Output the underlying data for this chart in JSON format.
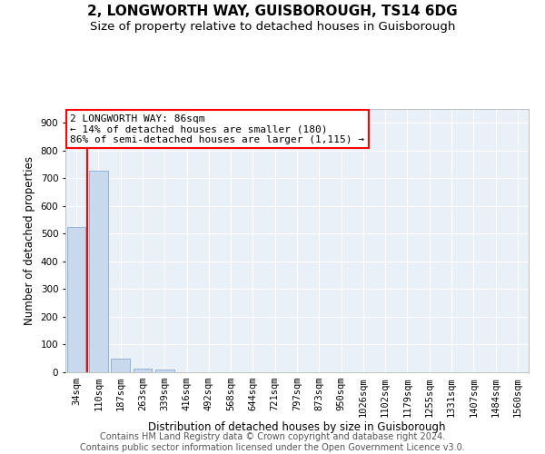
{
  "title": "2, LONGWORTH WAY, GUISBOROUGH, TS14 6DG",
  "subtitle": "Size of property relative to detached houses in Guisborough",
  "xlabel": "Distribution of detached houses by size in Guisborough",
  "ylabel": "Number of detached properties",
  "bar_color": "#c8d9ee",
  "bar_edge_color": "#88aacc",
  "categories": [
    "34sqm",
    "110sqm",
    "187sqm",
    "263sqm",
    "339sqm",
    "416sqm",
    "492sqm",
    "568sqm",
    "644sqm",
    "721sqm",
    "797sqm",
    "873sqm",
    "950sqm",
    "1026sqm",
    "1102sqm",
    "1179sqm",
    "1255sqm",
    "1331sqm",
    "1407sqm",
    "1484sqm",
    "1560sqm"
  ],
  "values": [
    525,
    727,
    48,
    12,
    10,
    0,
    0,
    0,
    0,
    0,
    0,
    0,
    0,
    0,
    0,
    0,
    0,
    0,
    0,
    0,
    0
  ],
  "ylim": [
    0,
    950
  ],
  "yticks": [
    0,
    100,
    200,
    300,
    400,
    500,
    600,
    700,
    800,
    900
  ],
  "annotation_line1": "2 LONGWORTH WAY: 86sqm",
  "annotation_line2": "← 14% of detached houses are smaller (180)",
  "annotation_line3": "86% of semi-detached houses are larger (1,115) →",
  "vline_pos": 0.5,
  "background_color": "#eaf0f8",
  "grid_color": "#ffffff",
  "footer_text": "Contains HM Land Registry data © Crown copyright and database right 2024.\nContains public sector information licensed under the Open Government Licence v3.0.",
  "title_fontsize": 11,
  "subtitle_fontsize": 9.5,
  "axis_label_fontsize": 8.5,
  "tick_fontsize": 7.5,
  "footer_fontsize": 7
}
